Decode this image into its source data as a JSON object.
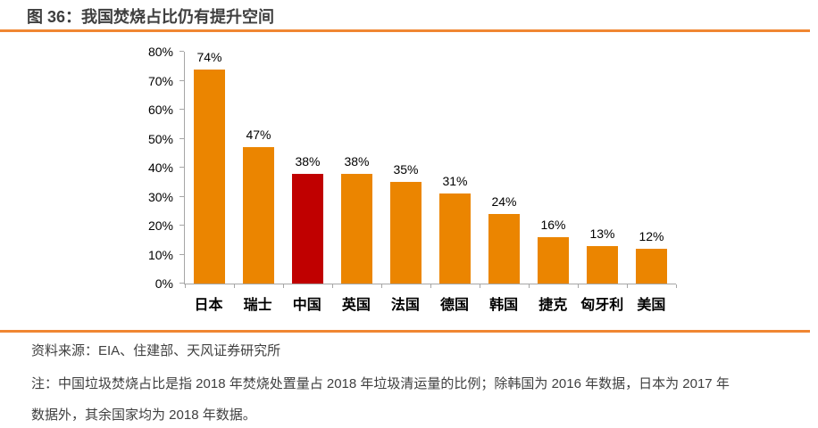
{
  "figure": {
    "title": "图 36：我国焚烧占比仍有提升空间",
    "source": "资料来源：EIA、住建部、天风证券研究所",
    "note_line1": "注：中国垃圾焚烧占比是指 2018 年焚烧处置量占 2018 年垃圾清运量的比例；除韩国为 2016 年数据，日本为 2017 年",
    "note_line2": "数据外，其余国家均为 2018 年数据。"
  },
  "colors": {
    "bar_default": "#EB8500",
    "bar_highlight": "#C00000",
    "divider": "#F08632",
    "axis": "#A6A6A6",
    "title_text": "#3F3F3F",
    "body_text": "#404040",
    "label_text": "#000000"
  },
  "chart_data": {
    "type": "bar",
    "title": "图 36：我国焚烧占比仍有提升空间",
    "categories": [
      "日本",
      "瑞士",
      "中国",
      "英国",
      "法国",
      "德国",
      "韩国",
      "捷克",
      "匈牙利",
      "美国"
    ],
    "values": [
      74,
      47,
      38,
      38,
      35,
      31,
      24,
      16,
      13,
      12
    ],
    "data_labels": [
      "74%",
      "47%",
      "38%",
      "38%",
      "35%",
      "31%",
      "24%",
      "16%",
      "13%",
      "12%"
    ],
    "highlight_category": "中国",
    "xlabel": "",
    "ylabel": "",
    "ylim": [
      0,
      80
    ],
    "ytick_step": 10,
    "ytick_labels": [
      "0%",
      "10%",
      "20%",
      "30%",
      "40%",
      "50%",
      "60%",
      "70%",
      "80%"
    ],
    "grid": false,
    "legend_position": "none"
  }
}
